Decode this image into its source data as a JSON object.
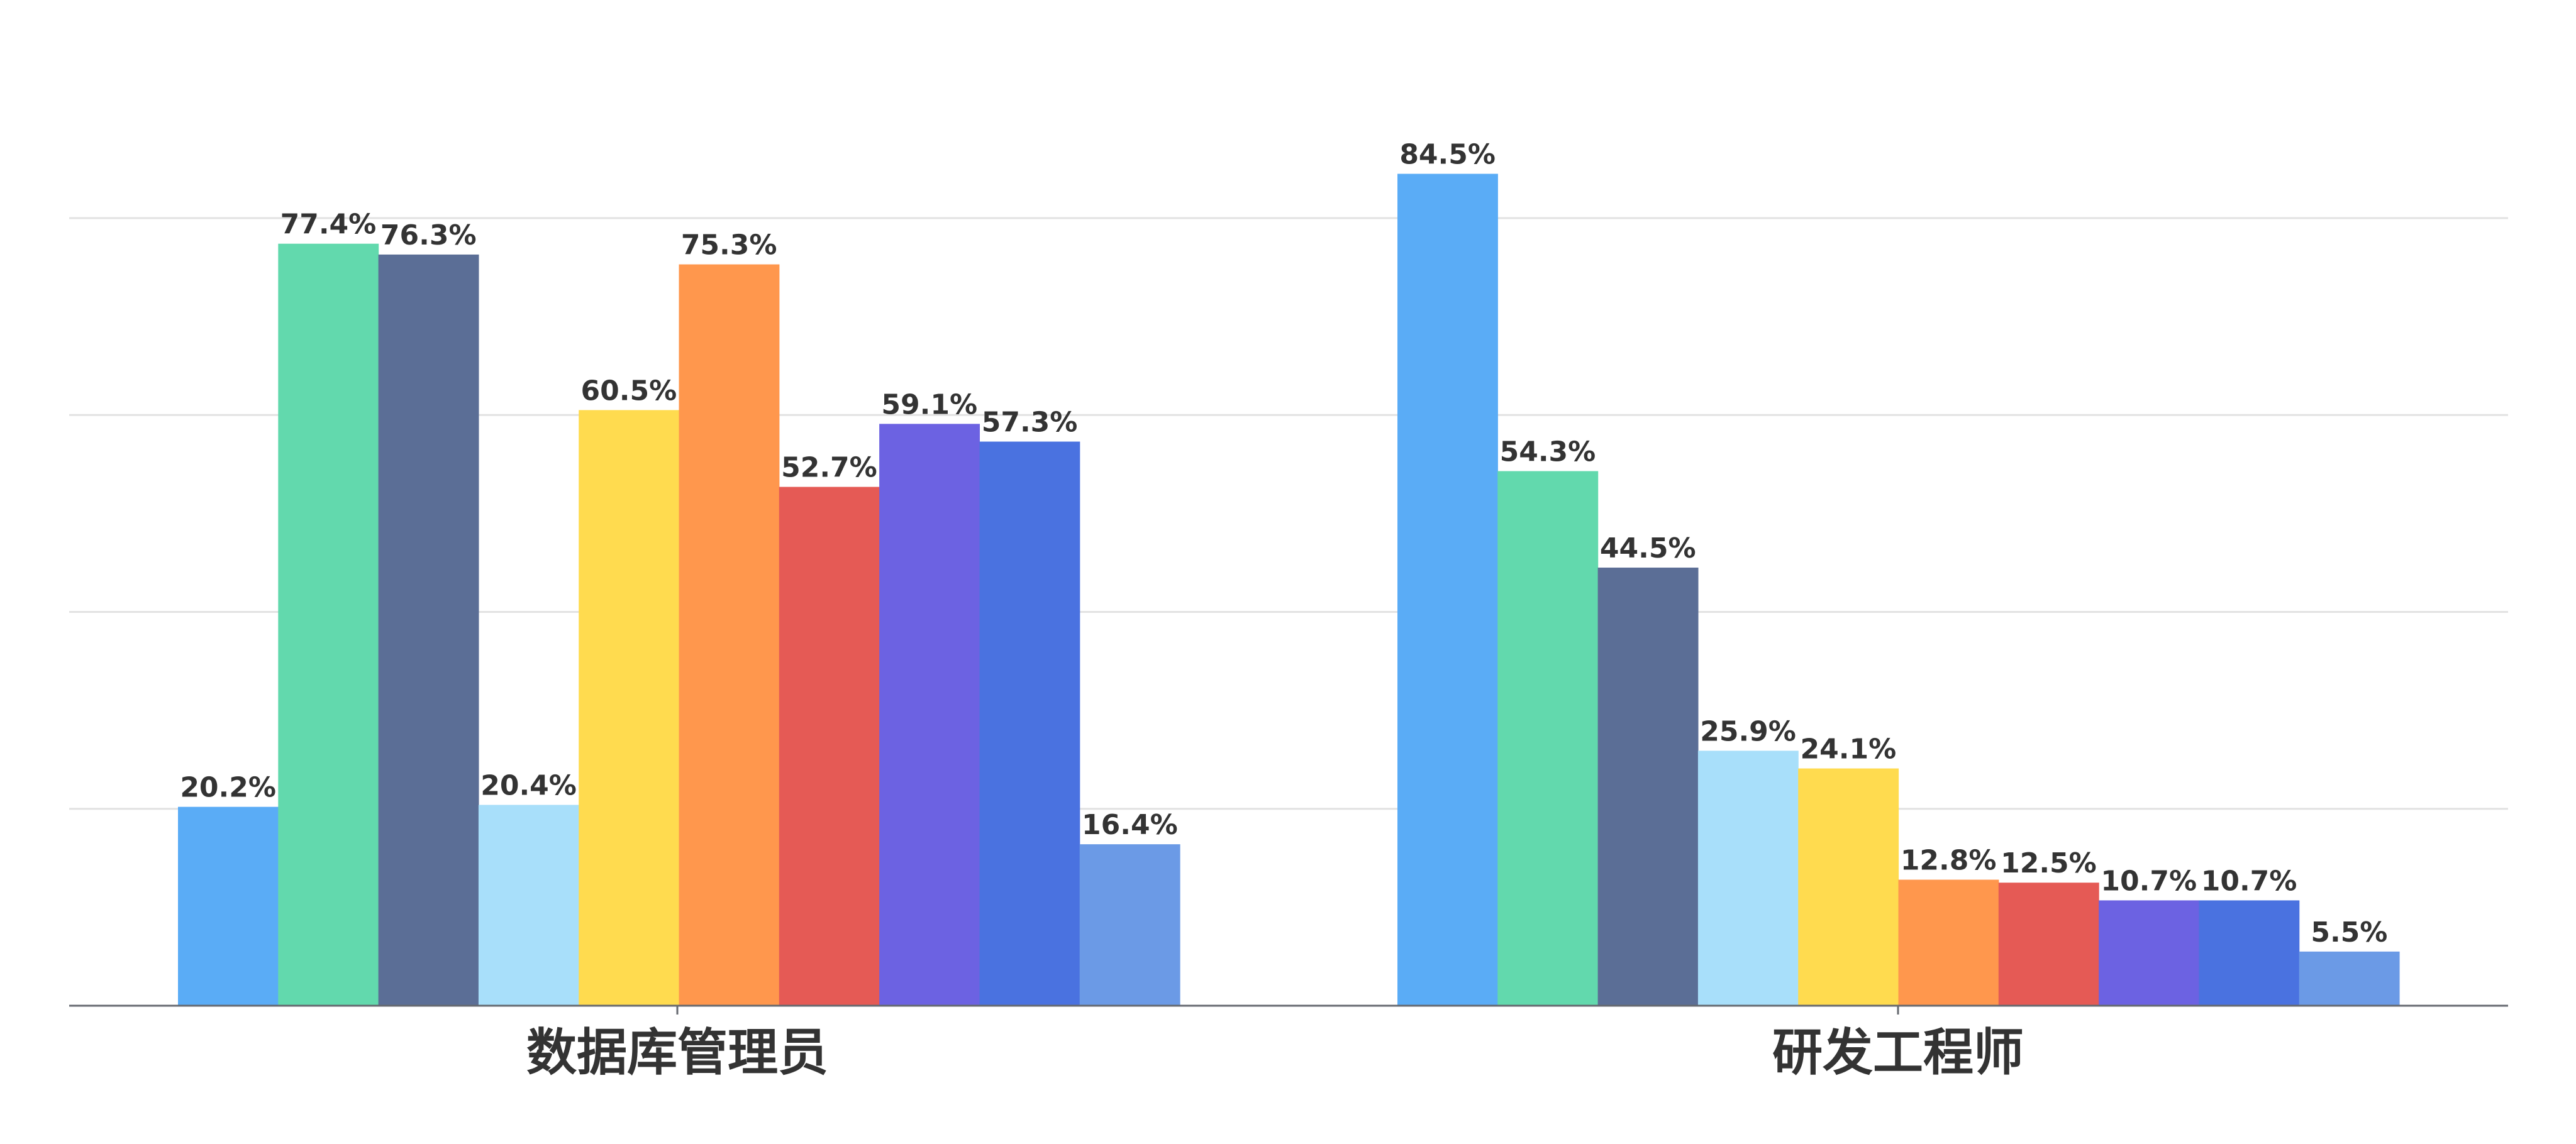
{
  "chart_data": {
    "type": "bar",
    "categories": [
      "数据库管理员",
      "研发工程师"
    ],
    "series": [
      {
        "color": "#5aacf6",
        "values": [
          20.2,
          84.5
        ]
      },
      {
        "color": "#62d9ad",
        "values": [
          77.4,
          54.3
        ]
      },
      {
        "color": "#5b6e96",
        "values": [
          76.3,
          44.5
        ]
      },
      {
        "color": "#a8dffa",
        "values": [
          20.4,
          25.9
        ]
      },
      {
        "color": "#ffdb4f",
        "values": [
          60.5,
          24.1
        ]
      },
      {
        "color": "#ff974d",
        "values": [
          75.3,
          12.8
        ]
      },
      {
        "color": "#e55a55",
        "values": [
          52.7,
          12.5
        ]
      },
      {
        "color": "#6c62e2",
        "values": [
          59.1,
          10.7
        ]
      },
      {
        "color": "#4a72e0",
        "values": [
          57.3,
          10.7
        ]
      },
      {
        "color": "#6b9ae6",
        "values": [
          16.4,
          5.5
        ]
      }
    ],
    "value_labels": [
      [
        "20.2%",
        "84.5%"
      ],
      [
        "77.4%",
        "54.3%"
      ],
      [
        "76.3%",
        "44.5%"
      ],
      [
        "20.4%",
        "25.9%"
      ],
      [
        "60.5%",
        "24.1%"
      ],
      [
        "75.3%",
        "12.8%"
      ],
      [
        "52.7%",
        "12.5%"
      ],
      [
        "59.1%",
        "10.7%"
      ],
      [
        "57.3%",
        "10.7%"
      ],
      [
        "16.4%",
        "5.5%"
      ]
    ],
    "ylim": [
      0,
      80
    ],
    "y_gridlines": [
      20,
      40,
      60,
      80
    ],
    "grid": true,
    "legend": "none",
    "title": "",
    "xlabel": "",
    "ylabel": ""
  }
}
